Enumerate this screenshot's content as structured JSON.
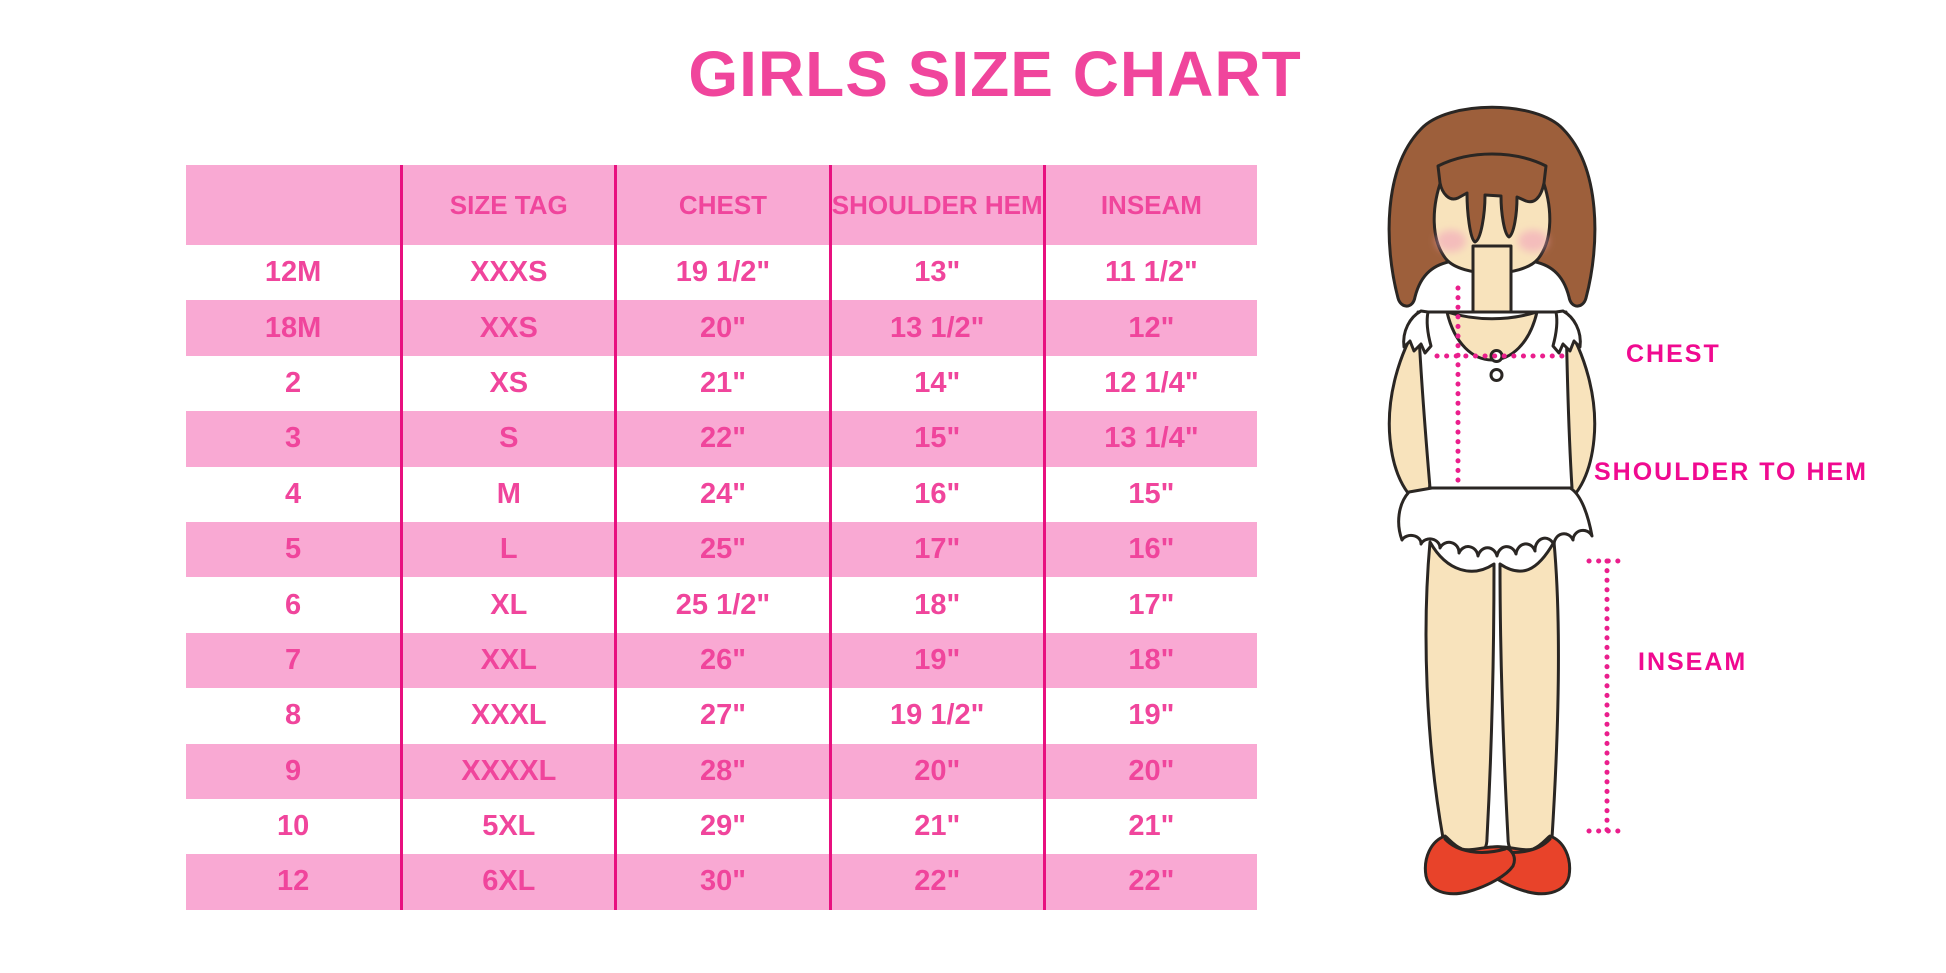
{
  "title": "GIRLS SIZE CHART",
  "colors": {
    "hot_pink": "#F0459C",
    "light_pink": "#F9A9D3",
    "grid_line": "#E8107F",
    "label_magenta": "#F00A90",
    "dotted": "#EA1E8C",
    "skin": "#F8E3BC",
    "hair": "#9D5F3B",
    "shoe": "#E8432A",
    "outline": "#2A2623"
  },
  "table": {
    "headers": [
      "",
      "SIZE TAG",
      "CHEST",
      "SHOULDER HEM",
      "INSEAM"
    ],
    "rows": [
      [
        "12M",
        "XXXS",
        "19 1/2\"",
        "13\"",
        "11 1/2\""
      ],
      [
        "18M",
        "XXS",
        "20\"",
        "13 1/2\"",
        "12\""
      ],
      [
        "2",
        "XS",
        "21\"",
        "14\"",
        "12 1/4\""
      ],
      [
        "3",
        "S",
        "22\"",
        "15\"",
        "13 1/4\""
      ],
      [
        "4",
        "M",
        "24\"",
        "16\"",
        "15\""
      ],
      [
        "5",
        "L",
        "25\"",
        "17\"",
        "16\""
      ],
      [
        "6",
        "XL",
        "25 1/2\"",
        "18\"",
        "17\""
      ],
      [
        "7",
        "XXL",
        "26\"",
        "19\"",
        "18\""
      ],
      [
        "8",
        "XXXL",
        "27\"",
        "19 1/2\"",
        "19\""
      ],
      [
        "9",
        "XXXXL",
        "28\"",
        "20\"",
        "20\""
      ],
      [
        "10",
        "5XL",
        "29\"",
        "21\"",
        "21\""
      ],
      [
        "12",
        "6XL",
        "30\"",
        "22\"",
        "22\""
      ]
    ]
  },
  "figure": {
    "labels": {
      "chest": "CHEST",
      "shoulder_to_hem": "SHOULDER TO HEM",
      "inseam": "INSEAM"
    }
  }
}
